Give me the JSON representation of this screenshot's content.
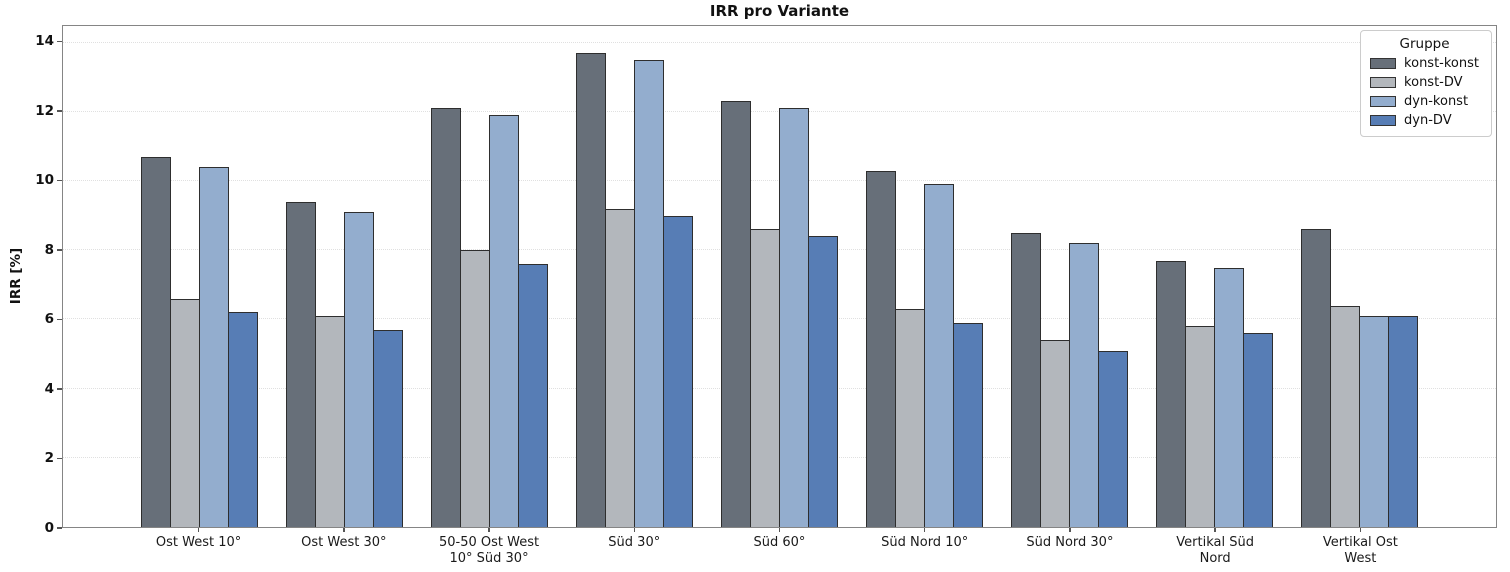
{
  "chart_data": {
    "type": "bar",
    "title": "IRR pro Variante",
    "xlabel": "",
    "ylabel": "IRR [%]",
    "legend_title": "Gruppe",
    "legend_position": "upper right",
    "grid": "horizontal dotted",
    "ylim": [
      0,
      14.48
    ],
    "yticks": [
      0,
      2,
      4,
      6,
      8,
      10,
      12,
      14
    ],
    "categories": [
      "Ost West 10°",
      "Ost West 30°",
      "50-50 Ost West\n10° Süd 30°",
      "Süd 30°",
      "Süd 60°",
      "Süd Nord 10°",
      "Süd Nord 30°",
      "Vertikal Süd\nNord",
      "Vertikal Ost\nWest"
    ],
    "series": [
      {
        "name": "konst-konst",
        "color": "#676F79",
        "values": [
          10.7,
          9.4,
          12.1,
          13.7,
          12.3,
          10.3,
          8.5,
          7.7,
          8.6
        ]
      },
      {
        "name": "konst-DV",
        "color": "#B3B7BC",
        "values": [
          6.6,
          6.1,
          8.0,
          9.2,
          8.6,
          6.3,
          5.4,
          5.8,
          6.4
        ]
      },
      {
        "name": "dyn-konst",
        "color": "#93ADCE",
        "values": [
          10.4,
          9.1,
          11.9,
          13.5,
          12.1,
          9.9,
          8.2,
          7.5,
          6.1
        ]
      },
      {
        "name": "dyn-DV",
        "color": "#577DB5",
        "values": [
          6.2,
          5.7,
          7.6,
          9.0,
          8.4,
          5.9,
          5.1,
          5.6,
          6.1
        ]
      }
    ],
    "colors": {
      "bar_edge": "#2e2e2e",
      "spine": "#858585",
      "gridline": "#e0e0e0",
      "text": "#111111"
    }
  }
}
